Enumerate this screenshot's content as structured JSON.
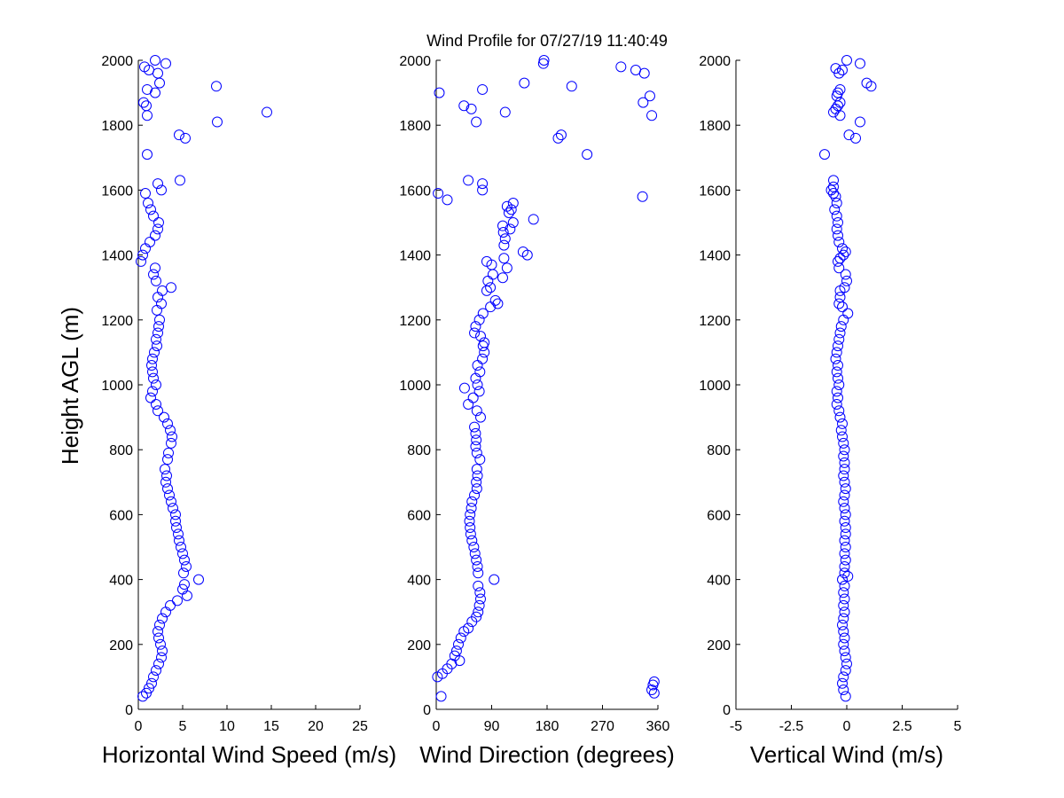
{
  "figure": {
    "title": "Wind Profile for  07/27/19 11:40:49",
    "ylabel": "Height AGL (m)",
    "marker_color": "#0000ff"
  },
  "chart_data": [
    {
      "type": "scatter",
      "xlabel": "Horizontal Wind Speed (m/s)",
      "ylabel": "Height AGL (m)",
      "xlim": [
        0,
        25
      ],
      "ylim": [
        0,
        2000
      ],
      "xticks": [
        0,
        5,
        10,
        15,
        20,
        25
      ],
      "xtick_labels": [
        "0",
        "5",
        "10",
        "15",
        "20",
        "25"
      ],
      "yticks": [
        0,
        200,
        400,
        600,
        800,
        1000,
        1200,
        1400,
        1600,
        1800,
        2000
      ],
      "ytick_labels": [
        "0",
        "200",
        "400",
        "600",
        "800",
        "1000",
        "1200",
        "1400",
        "1600",
        "1800",
        "2000"
      ],
      "grid": false,
      "points": [
        [
          0.5,
          40
        ],
        [
          0.9,
          50
        ],
        [
          1.2,
          65
        ],
        [
          1.5,
          80
        ],
        [
          1.7,
          100
        ],
        [
          2.0,
          120
        ],
        [
          2.3,
          140
        ],
        [
          2.6,
          160
        ],
        [
          2.7,
          180
        ],
        [
          2.5,
          200
        ],
        [
          2.3,
          220
        ],
        [
          2.2,
          240
        ],
        [
          2.4,
          260
        ],
        [
          2.7,
          280
        ],
        [
          3.1,
          300
        ],
        [
          3.6,
          320
        ],
        [
          4.4,
          335
        ],
        [
          5.5,
          350
        ],
        [
          5.0,
          370
        ],
        [
          5.2,
          385
        ],
        [
          6.8,
          400
        ],
        [
          5.1,
          420
        ],
        [
          5.4,
          440
        ],
        [
          5.2,
          460
        ],
        [
          5.0,
          480
        ],
        [
          4.8,
          500
        ],
        [
          4.6,
          520
        ],
        [
          4.5,
          540
        ],
        [
          4.3,
          560
        ],
        [
          4.2,
          580
        ],
        [
          4.2,
          600
        ],
        [
          3.9,
          620
        ],
        [
          3.7,
          640
        ],
        [
          3.5,
          660
        ],
        [
          3.3,
          680
        ],
        [
          3.1,
          700
        ],
        [
          3.2,
          720
        ],
        [
          3.0,
          740
        ],
        [
          3.3,
          770
        ],
        [
          3.4,
          790
        ],
        [
          3.7,
          820
        ],
        [
          3.8,
          840
        ],
        [
          3.6,
          860
        ],
        [
          3.3,
          880
        ],
        [
          2.9,
          900
        ],
        [
          2.2,
          920
        ],
        [
          2.0,
          940
        ],
        [
          1.4,
          960
        ],
        [
          1.6,
          980
        ],
        [
          2.0,
          1000
        ],
        [
          1.7,
          1020
        ],
        [
          1.6,
          1040
        ],
        [
          1.5,
          1060
        ],
        [
          1.6,
          1080
        ],
        [
          1.8,
          1100
        ],
        [
          2.1,
          1120
        ],
        [
          2.0,
          1140
        ],
        [
          2.2,
          1160
        ],
        [
          2.3,
          1180
        ],
        [
          2.4,
          1200
        ],
        [
          2.1,
          1230
        ],
        [
          2.6,
          1250
        ],
        [
          2.2,
          1270
        ],
        [
          2.7,
          1290
        ],
        [
          3.7,
          1300
        ],
        [
          2.0,
          1320
        ],
        [
          1.7,
          1340
        ],
        [
          1.9,
          1360
        ],
        [
          0.3,
          1380
        ],
        [
          0.5,
          1400
        ],
        [
          0.8,
          1420
        ],
        [
          1.3,
          1440
        ],
        [
          1.9,
          1460
        ],
        [
          2.2,
          1480
        ],
        [
          2.3,
          1500
        ],
        [
          1.7,
          1520
        ],
        [
          1.4,
          1540
        ],
        [
          1.1,
          1560
        ],
        [
          0.8,
          1590
        ],
        [
          2.6,
          1600
        ],
        [
          2.2,
          1620
        ],
        [
          4.7,
          1630
        ],
        [
          1.0,
          1710
        ],
        [
          5.3,
          1760
        ],
        [
          4.6,
          1770
        ],
        [
          8.9,
          1810
        ],
        [
          1.0,
          1830
        ],
        [
          14.5,
          1840
        ],
        [
          0.9,
          1860
        ],
        [
          0.6,
          1870
        ],
        [
          1.9,
          1900
        ],
        [
          1.0,
          1910
        ],
        [
          8.8,
          1920
        ],
        [
          2.4,
          1930
        ],
        [
          2.2,
          1960
        ],
        [
          1.2,
          1970
        ],
        [
          0.7,
          1980
        ],
        [
          3.1,
          1990
        ],
        [
          1.9,
          2000
        ]
      ]
    },
    {
      "type": "scatter",
      "xlabel": "Wind Direction (degrees)",
      "ylabel": "",
      "xlim": [
        0,
        360
      ],
      "ylim": [
        0,
        2000
      ],
      "xticks": [
        0,
        90,
        180,
        270,
        360
      ],
      "xtick_labels": [
        "0",
        "90",
        "180",
        "270",
        "360"
      ],
      "yticks": [
        0,
        200,
        400,
        600,
        800,
        1000,
        1200,
        1400,
        1600,
        1800,
        2000
      ],
      "ytick_labels": [
        "0",
        "200",
        "400",
        "600",
        "800",
        "1000",
        "1200",
        "1400",
        "1600",
        "1800",
        "2000"
      ],
      "grid": false,
      "points": [
        [
          8,
          40
        ],
        [
          354,
          50
        ],
        [
          350,
          60
        ],
        [
          352,
          75
        ],
        [
          354,
          85
        ],
        [
          2,
          100
        ],
        [
          10,
          110
        ],
        [
          18,
          125
        ],
        [
          25,
          140
        ],
        [
          38,
          150
        ],
        [
          30,
          165
        ],
        [
          33,
          180
        ],
        [
          36,
          200
        ],
        [
          40,
          220
        ],
        [
          45,
          240
        ],
        [
          52,
          250
        ],
        [
          58,
          270
        ],
        [
          65,
          285
        ],
        [
          68,
          300
        ],
        [
          70,
          320
        ],
        [
          72,
          340
        ],
        [
          71,
          360
        ],
        [
          68,
          380
        ],
        [
          94,
          400
        ],
        [
          68,
          420
        ],
        [
          67,
          440
        ],
        [
          65,
          460
        ],
        [
          63,
          480
        ],
        [
          61,
          500
        ],
        [
          58,
          520
        ],
        [
          56,
          540
        ],
        [
          55,
          560
        ],
        [
          54,
          580
        ],
        [
          55,
          600
        ],
        [
          57,
          620
        ],
        [
          58,
          640
        ],
        [
          62,
          660
        ],
        [
          66,
          680
        ],
        [
          65,
          700
        ],
        [
          67,
          720
        ],
        [
          66,
          740
        ],
        [
          71,
          770
        ],
        [
          66,
          790
        ],
        [
          64,
          810
        ],
        [
          65,
          830
        ],
        [
          64,
          850
        ],
        [
          62,
          870
        ],
        [
          72,
          900
        ],
        [
          66,
          920
        ],
        [
          52,
          940
        ],
        [
          60,
          960
        ],
        [
          70,
          980
        ],
        [
          46,
          990
        ],
        [
          67,
          1000
        ],
        [
          64,
          1020
        ],
        [
          71,
          1040
        ],
        [
          67,
          1060
        ],
        [
          75,
          1080
        ],
        [
          78,
          1100
        ],
        [
          76,
          1120
        ],
        [
          78,
          1130
        ],
        [
          72,
          1150
        ],
        [
          62,
          1160
        ],
        [
          64,
          1180
        ],
        [
          70,
          1200
        ],
        [
          76,
          1220
        ],
        [
          88,
          1240
        ],
        [
          100,
          1250
        ],
        [
          96,
          1260
        ],
        [
          82,
          1290
        ],
        [
          88,
          1300
        ],
        [
          84,
          1320
        ],
        [
          108,
          1330
        ],
        [
          92,
          1340
        ],
        [
          115,
          1360
        ],
        [
          90,
          1370
        ],
        [
          82,
          1380
        ],
        [
          110,
          1390
        ],
        [
          148,
          1400
        ],
        [
          141,
          1410
        ],
        [
          110,
          1430
        ],
        [
          112,
          1450
        ],
        [
          109,
          1470
        ],
        [
          120,
          1480
        ],
        [
          108,
          1490
        ],
        [
          125,
          1500
        ],
        [
          158,
          1510
        ],
        [
          118,
          1530
        ],
        [
          122,
          1540
        ],
        [
          115,
          1550
        ],
        [
          125,
          1560
        ],
        [
          18,
          1570
        ],
        [
          335,
          1580
        ],
        [
          3,
          1590
        ],
        [
          75,
          1600
        ],
        [
          75,
          1620
        ],
        [
          52,
          1630
        ],
        [
          245,
          1710
        ],
        [
          198,
          1760
        ],
        [
          203,
          1770
        ],
        [
          65,
          1810
        ],
        [
          350,
          1830
        ],
        [
          112,
          1840
        ],
        [
          57,
          1850
        ],
        [
          45,
          1860
        ],
        [
          336,
          1870
        ],
        [
          347,
          1890
        ],
        [
          5,
          1900
        ],
        [
          75,
          1910
        ],
        [
          220,
          1920
        ],
        [
          143,
          1930
        ],
        [
          338,
          1960
        ],
        [
          324,
          1970
        ],
        [
          300,
          1980
        ],
        [
          174,
          1990
        ],
        [
          175,
          2000
        ]
      ]
    },
    {
      "type": "scatter",
      "xlabel": "Vertical Wind (m/s)",
      "ylabel": "",
      "xlim": [
        -5,
        5
      ],
      "ylim": [
        0,
        2000
      ],
      "xticks": [
        -5,
        -2.5,
        0,
        2.5,
        5
      ],
      "xtick_labels": [
        "-5",
        "-2.5",
        "0",
        "2.5",
        "5"
      ],
      "yticks": [
        0,
        200,
        400,
        600,
        800,
        1000,
        1200,
        1400,
        1600,
        1800,
        2000
      ],
      "ytick_labels": [
        "0",
        "200",
        "400",
        "600",
        "800",
        "1000",
        "1200",
        "1400",
        "1600",
        "1800",
        "2000"
      ],
      "grid": false,
      "points": [
        [
          -0.05,
          40
        ],
        [
          -0.15,
          60
        ],
        [
          -0.2,
          80
        ],
        [
          -0.15,
          100
        ],
        [
          -0.05,
          120
        ],
        [
          0.0,
          140
        ],
        [
          -0.05,
          160
        ],
        [
          -0.1,
          180
        ],
        [
          -0.15,
          200
        ],
        [
          -0.1,
          220
        ],
        [
          -0.15,
          240
        ],
        [
          -0.2,
          260
        ],
        [
          -0.15,
          280
        ],
        [
          -0.1,
          300
        ],
        [
          -0.15,
          320
        ],
        [
          -0.1,
          340
        ],
        [
          -0.15,
          360
        ],
        [
          -0.1,
          380
        ],
        [
          -0.2,
          400
        ],
        [
          0.05,
          410
        ],
        [
          -0.1,
          420
        ],
        [
          -0.1,
          440
        ],
        [
          -0.05,
          460
        ],
        [
          -0.1,
          480
        ],
        [
          -0.05,
          500
        ],
        [
          -0.1,
          520
        ],
        [
          -0.05,
          540
        ],
        [
          -0.05,
          560
        ],
        [
          -0.1,
          580
        ],
        [
          -0.05,
          600
        ],
        [
          -0.1,
          620
        ],
        [
          -0.15,
          640
        ],
        [
          -0.1,
          660
        ],
        [
          -0.05,
          680
        ],
        [
          -0.1,
          700
        ],
        [
          -0.15,
          720
        ],
        [
          -0.1,
          740
        ],
        [
          -0.1,
          760
        ],
        [
          -0.15,
          780
        ],
        [
          -0.1,
          800
        ],
        [
          -0.15,
          820
        ],
        [
          -0.2,
          840
        ],
        [
          -0.25,
          860
        ],
        [
          -0.2,
          880
        ],
        [
          -0.3,
          900
        ],
        [
          -0.35,
          920
        ],
        [
          -0.45,
          940
        ],
        [
          -0.4,
          960
        ],
        [
          -0.45,
          980
        ],
        [
          -0.35,
          1000
        ],
        [
          -0.4,
          1020
        ],
        [
          -0.45,
          1040
        ],
        [
          -0.4,
          1060
        ],
        [
          -0.5,
          1080
        ],
        [
          -0.45,
          1100
        ],
        [
          -0.4,
          1120
        ],
        [
          -0.35,
          1140
        ],
        [
          -0.3,
          1160
        ],
        [
          -0.25,
          1180
        ],
        [
          -0.15,
          1200
        ],
        [
          0.05,
          1220
        ],
        [
          -0.2,
          1240
        ],
        [
          -0.35,
          1250
        ],
        [
          -0.3,
          1270
        ],
        [
          -0.3,
          1290
        ],
        [
          -0.1,
          1300
        ],
        [
          0.0,
          1320
        ],
        [
          -0.05,
          1340
        ],
        [
          -0.35,
          1360
        ],
        [
          -0.4,
          1380
        ],
        [
          -0.3,
          1390
        ],
        [
          -0.15,
          1400
        ],
        [
          -0.05,
          1410
        ],
        [
          -0.2,
          1420
        ],
        [
          -0.35,
          1440
        ],
        [
          -0.4,
          1460
        ],
        [
          -0.45,
          1480
        ],
        [
          -0.4,
          1500
        ],
        [
          -0.45,
          1520
        ],
        [
          -0.55,
          1540
        ],
        [
          -0.45,
          1560
        ],
        [
          -0.5,
          1580
        ],
        [
          -0.6,
          1590
        ],
        [
          -0.7,
          1600
        ],
        [
          -0.6,
          1610
        ],
        [
          -0.6,
          1630
        ],
        [
          -1.0,
          1710
        ],
        [
          0.4,
          1760
        ],
        [
          0.1,
          1770
        ],
        [
          0.6,
          1810
        ],
        [
          -0.3,
          1830
        ],
        [
          -0.6,
          1840
        ],
        [
          -0.5,
          1850
        ],
        [
          -0.4,
          1860
        ],
        [
          -0.3,
          1870
        ],
        [
          -0.45,
          1890
        ],
        [
          -0.4,
          1900
        ],
        [
          -0.3,
          1910
        ],
        [
          1.1,
          1920
        ],
        [
          0.9,
          1930
        ],
        [
          -0.35,
          1960
        ],
        [
          -0.2,
          1970
        ],
        [
          -0.5,
          1975
        ],
        [
          0.6,
          1990
        ],
        [
          0.0,
          2000
        ]
      ]
    }
  ]
}
